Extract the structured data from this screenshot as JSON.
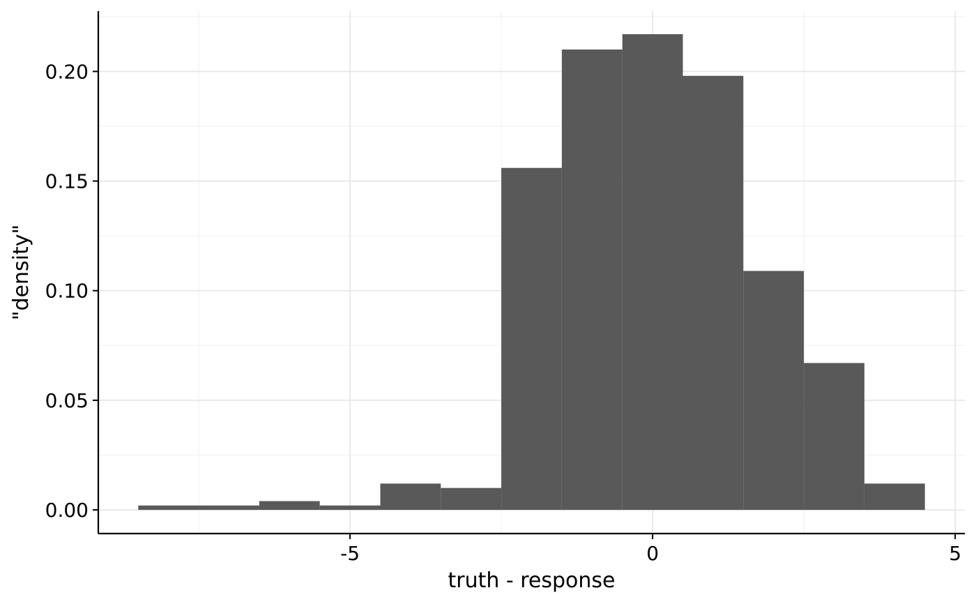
{
  "chart_data": {
    "type": "bar",
    "subtype": "histogram",
    "title": "",
    "xlabel": "truth - response",
    "ylabel": "\"density\"",
    "bin_width": 1,
    "bins": [
      {
        "x0": -8.5,
        "x1": -7.5,
        "density": 0.002
      },
      {
        "x0": -7.5,
        "x1": -6.5,
        "density": 0.002
      },
      {
        "x0": -6.5,
        "x1": -5.5,
        "density": 0.004
      },
      {
        "x0": -5.5,
        "x1": -4.5,
        "density": 0.002
      },
      {
        "x0": -4.5,
        "x1": -3.5,
        "density": 0.012
      },
      {
        "x0": -3.5,
        "x1": -2.5,
        "density": 0.01
      },
      {
        "x0": -2.5,
        "x1": -1.5,
        "density": 0.156
      },
      {
        "x0": -1.5,
        "x1": -0.5,
        "density": 0.21
      },
      {
        "x0": -0.5,
        "x1": 0.5,
        "density": 0.217
      },
      {
        "x0": 0.5,
        "x1": 1.5,
        "density": 0.198
      },
      {
        "x0": 1.5,
        "x1": 2.5,
        "density": 0.109
      },
      {
        "x0": 2.5,
        "x1": 3.5,
        "density": 0.067
      },
      {
        "x0": 3.5,
        "x1": 4.5,
        "density": 0.012
      }
    ],
    "xlim": [
      -9.16,
      5.16
    ],
    "ylim": [
      -0.0108,
      0.2275
    ],
    "x_ticks": [
      {
        "value": -5,
        "label": "-5"
      },
      {
        "value": 0,
        "label": "0"
      },
      {
        "value": 5,
        "label": "5"
      }
    ],
    "x_minor_ticks": [
      -7.5,
      -2.5,
      2.5
    ],
    "y_ticks": [
      {
        "value": 0.0,
        "label": "0.00"
      },
      {
        "value": 0.05,
        "label": "0.05"
      },
      {
        "value": 0.1,
        "label": "0.10"
      },
      {
        "value": 0.15,
        "label": "0.15"
      },
      {
        "value": 0.2,
        "label": "0.20"
      }
    ],
    "y_minor_ticks": [
      0.025,
      0.075,
      0.125,
      0.175,
      0.225
    ],
    "grid": true,
    "bar_color": "#595959",
    "grid_major_color": "#e5e5e5",
    "grid_minor_color": "#f2f2f2",
    "axis_color": "#000000"
  }
}
